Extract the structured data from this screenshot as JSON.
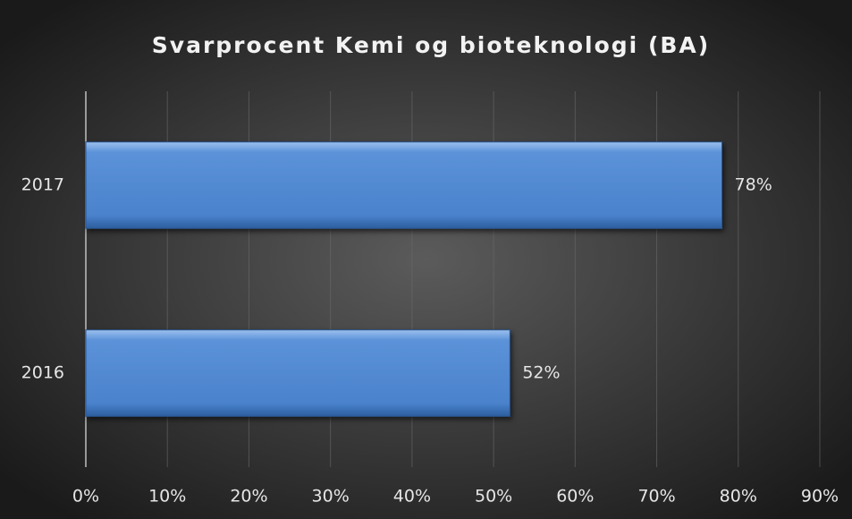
{
  "chart_data": {
    "type": "hbar",
    "title": "Svarprocent Kemi og bioteknologi (BA)",
    "categories": [
      "2016",
      "2017"
    ],
    "values": [
      52,
      78
    ],
    "value_labels": [
      "52%",
      "78%"
    ],
    "color": "#4f86d0",
    "xlim": [
      0,
      90
    ],
    "xticks": [
      {
        "value": 0,
        "label": "0%"
      },
      {
        "value": 10,
        "label": "10%"
      },
      {
        "value": 20,
        "label": "20%"
      },
      {
        "value": 30,
        "label": "30%"
      },
      {
        "value": 40,
        "label": "40%"
      },
      {
        "value": 50,
        "label": "50%"
      },
      {
        "value": 60,
        "label": "60%"
      },
      {
        "value": 70,
        "label": "70%"
      },
      {
        "value": 80,
        "label": "80%"
      },
      {
        "value": 90,
        "label": "90%"
      }
    ],
    "grid": true
  }
}
